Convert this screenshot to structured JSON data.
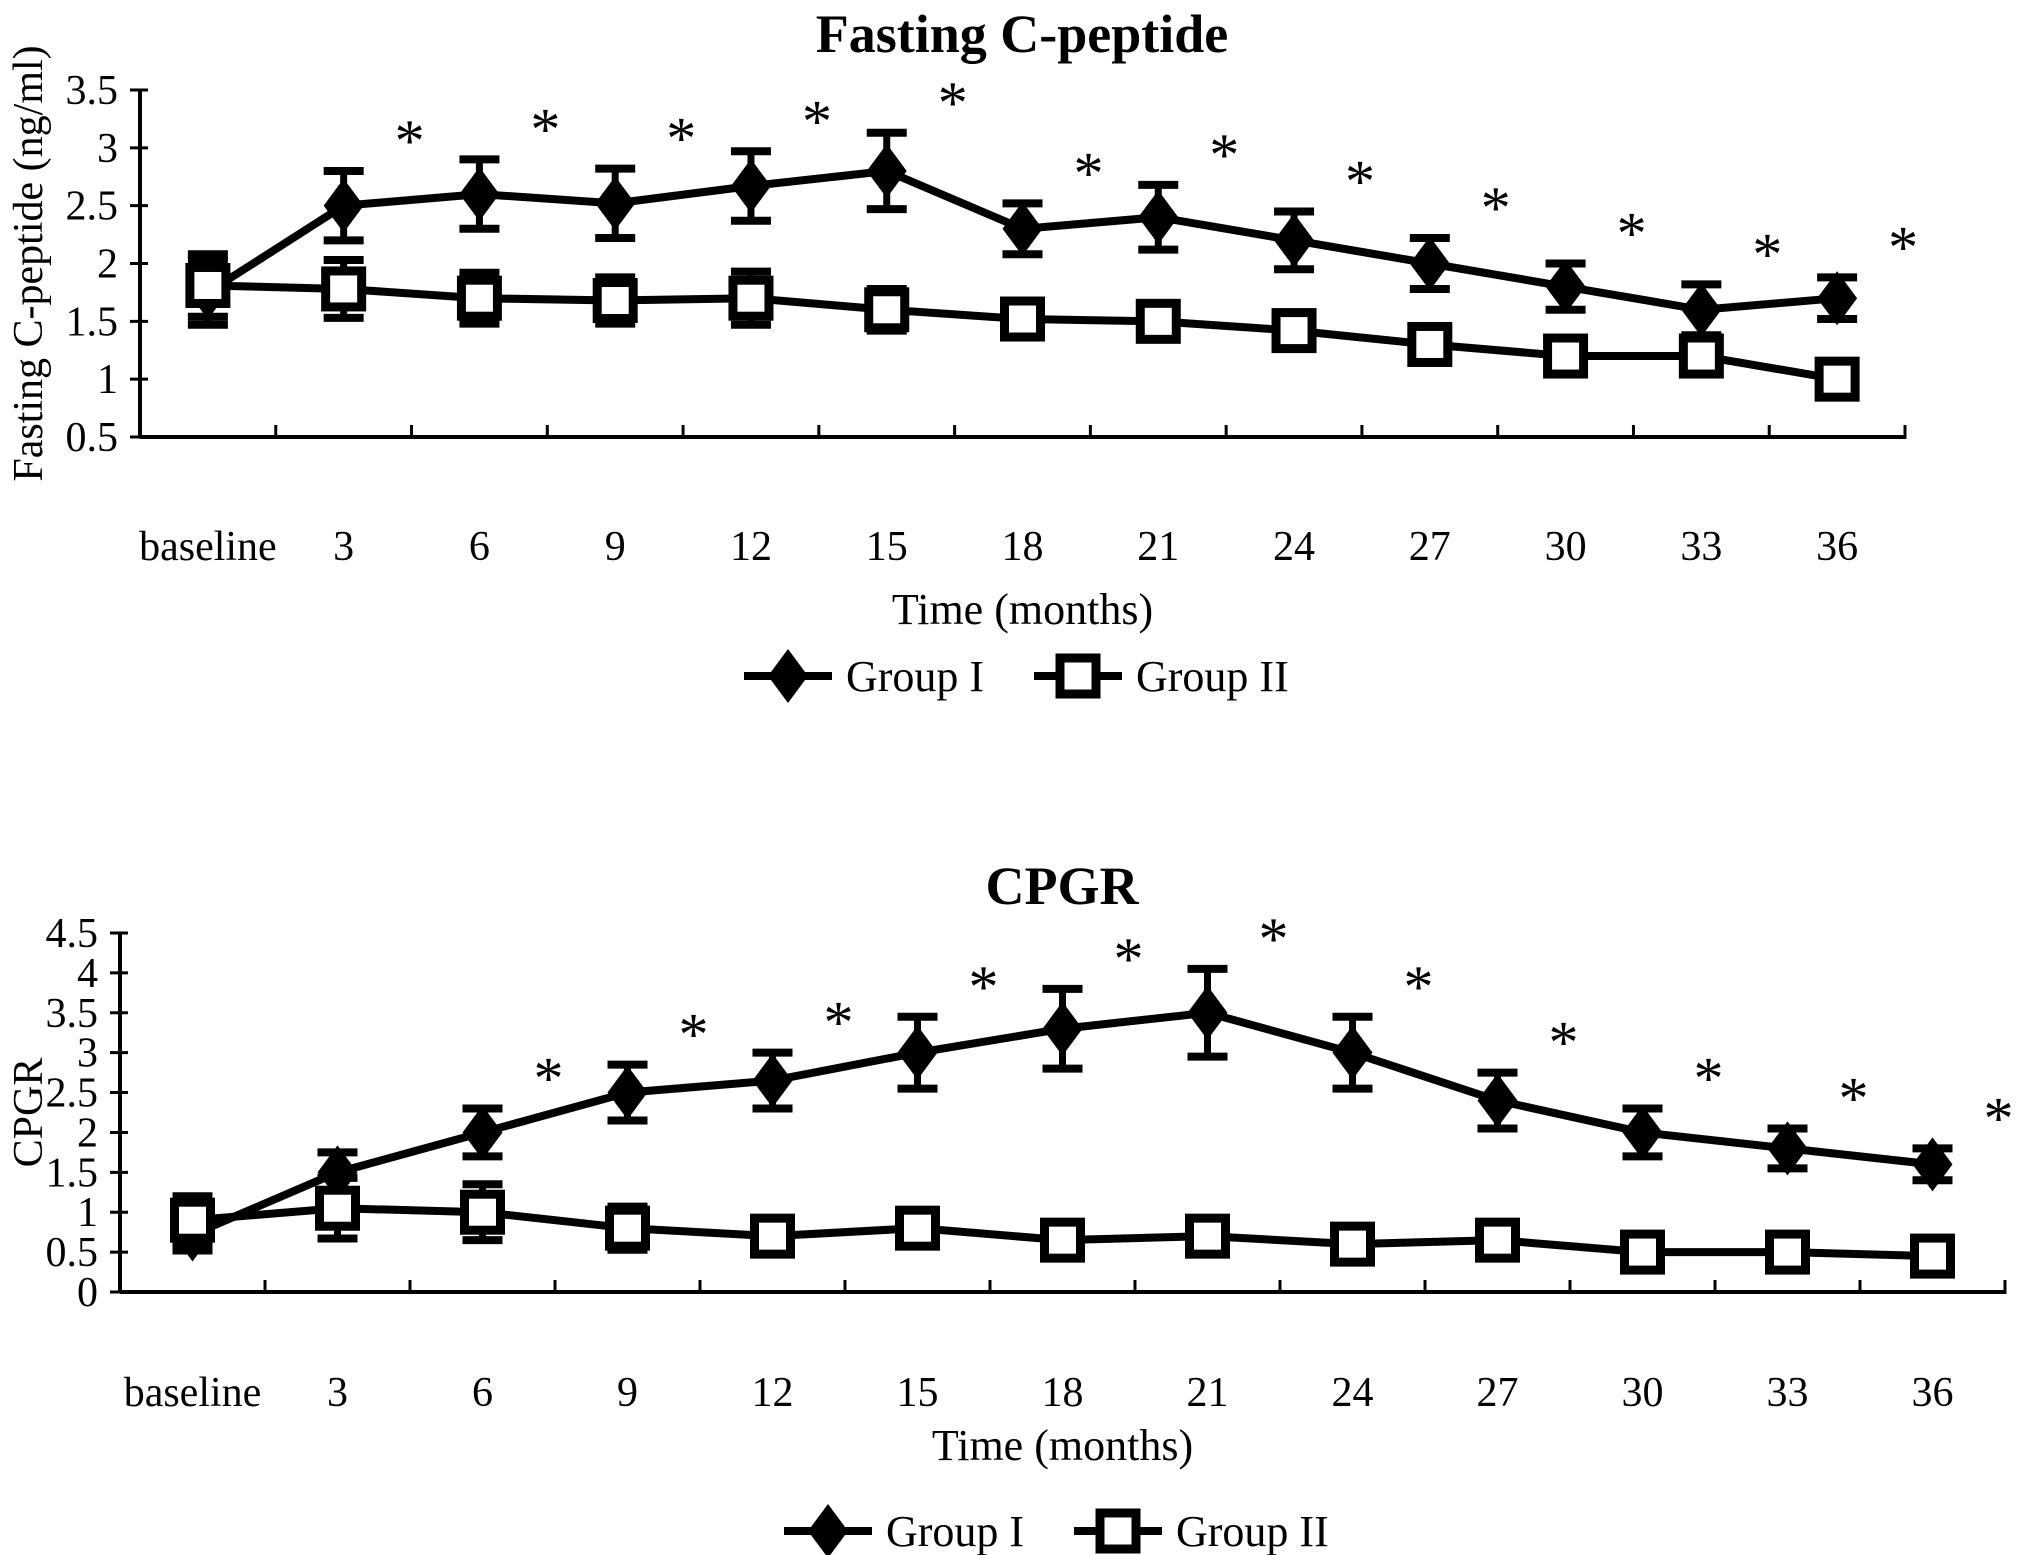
{
  "figure": {
    "background": "#ffffff",
    "ink_color": "#000000",
    "significance_symbol": "*"
  },
  "chart_data": [
    {
      "type": "line",
      "title": "Fasting C-peptide",
      "ylabel": "Fasting C-peptide (ng/ml)",
      "xlabel": "Time (months)",
      "categories": [
        "baseline",
        "3",
        "6",
        "9",
        "12",
        "15",
        "18",
        "21",
        "24",
        "27",
        "30",
        "33",
        "36"
      ],
      "ylim": [
        0.5,
        3.5
      ],
      "ytick_values": [
        3.5,
        3,
        2.5,
        2,
        1.5,
        1,
        0.5
      ],
      "ytick_labels": [
        "3.5",
        "3",
        "2.5",
        "2",
        "1.5",
        "1",
        "0.5"
      ],
      "grid": false,
      "legend_position": "bottom",
      "legend": [
        {
          "name": "Group I",
          "marker": "filled-diamond"
        },
        {
          "name": "Group II",
          "marker": "open-square"
        }
      ],
      "series": [
        {
          "name": "Group I",
          "marker": "filled-diamond",
          "values": [
            1.75,
            2.5,
            2.6,
            2.52,
            2.67,
            2.8,
            2.3,
            2.4,
            2.2,
            2.0,
            1.8,
            1.6,
            1.7
          ],
          "errors": [
            0.28,
            0.3,
            0.3,
            0.3,
            0.3,
            0.33,
            0.22,
            0.28,
            0.25,
            0.22,
            0.2,
            0.22,
            0.18
          ],
          "significant": [
            false,
            true,
            true,
            true,
            true,
            true,
            true,
            true,
            true,
            true,
            true,
            true,
            true
          ]
        },
        {
          "name": "Group II",
          "marker": "open-square",
          "values": [
            1.81,
            1.78,
            1.7,
            1.68,
            1.7,
            1.6,
            1.52,
            1.5,
            1.42,
            1.3,
            1.2,
            1.2,
            1.0
          ],
          "errors": [
            0.27,
            0.25,
            0.22,
            0.2,
            0.23,
            0.18,
            0.15,
            0.15,
            0.13,
            0.15,
            0.13,
            0.15,
            0.12
          ],
          "significant": [
            false,
            false,
            false,
            false,
            false,
            false,
            false,
            false,
            false,
            false,
            false,
            false,
            false
          ]
        }
      ]
    },
    {
      "type": "line",
      "title": "CPGR",
      "ylabel": "CPGR",
      "xlabel": "Time (months)",
      "categories": [
        "baseline",
        "3",
        "6",
        "9",
        "12",
        "15",
        "18",
        "21",
        "24",
        "27",
        "30",
        "33",
        "36"
      ],
      "ylim": [
        0,
        4.5
      ],
      "ytick_values": [
        4.5,
        4,
        3.5,
        3,
        2.5,
        2,
        1.5,
        1,
        0.5,
        0
      ],
      "ytick_labels": [
        "4.5",
        "4",
        "3.5",
        "3",
        "2.5",
        "2",
        "1.5",
        "1",
        "0.5",
        "0"
      ],
      "grid": false,
      "legend_position": "bottom",
      "legend": [
        {
          "name": "Group I",
          "marker": "filled-diamond"
        },
        {
          "name": "Group II",
          "marker": "open-square"
        }
      ],
      "series": [
        {
          "name": "Group I",
          "marker": "filled-diamond",
          "values": [
            0.72,
            1.5,
            2.0,
            2.5,
            2.65,
            3.0,
            3.3,
            3.5,
            3.0,
            2.4,
            2.0,
            1.8,
            1.6
          ],
          "errors": [
            0.2,
            0.25,
            0.3,
            0.35,
            0.35,
            0.45,
            0.5,
            0.55,
            0.45,
            0.35,
            0.3,
            0.25,
            0.2
          ],
          "significant": [
            false,
            false,
            true,
            true,
            true,
            true,
            true,
            true,
            true,
            true,
            true,
            true,
            true
          ]
        },
        {
          "name": "Group II",
          "marker": "open-square",
          "values": [
            0.9,
            1.05,
            1.0,
            0.8,
            0.7,
            0.8,
            0.65,
            0.7,
            0.6,
            0.65,
            0.5,
            0.5,
            0.45
          ],
          "errors": [
            0.3,
            0.38,
            0.35,
            0.27,
            0.18,
            0.22,
            0.18,
            0.18,
            0.1,
            0.12,
            0.1,
            0.08,
            0.08
          ],
          "significant": [
            false,
            false,
            false,
            false,
            false,
            false,
            false,
            false,
            false,
            false,
            false,
            false,
            false
          ]
        }
      ]
    }
  ]
}
